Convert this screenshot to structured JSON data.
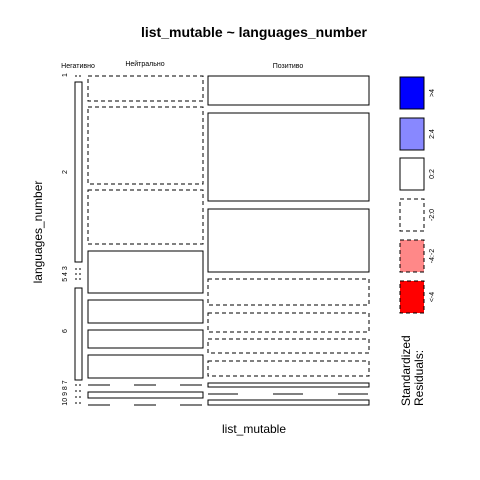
{
  "chart_data": {
    "type": "mosaic",
    "title": "list_mutable ~ languages_number",
    "xlabel": "list_mutable",
    "ylabel": "languages_number",
    "columns": [
      "Негативно",
      "Нейтрально",
      "Позитиво"
    ],
    "column_proportions": [
      0.035,
      0.385,
      0.58
    ],
    "rows": [
      "1",
      "2",
      "3",
      "4",
      "5",
      "6",
      "7",
      "8",
      "9",
      "10"
    ],
    "row_labels_shown": [
      "1",
      "2",
      "5 4 3",
      "6",
      "10 9 8 7"
    ],
    "cells": [
      {
        "column": "Негативно",
        "segments": [
          {
            "rows": "1",
            "share": 0.01,
            "residual_band": "<-4..0",
            "style": "line"
          },
          {
            "rows": "2",
            "share": 0.56,
            "residual_band": "0:2",
            "style": "solid"
          },
          {
            "rows": "3-5",
            "share": 0.03,
            "residual_band": "-2:0",
            "style": "dashed"
          },
          {
            "rows": "6",
            "share": 0.31,
            "residual_band": "0:2",
            "style": "solid"
          },
          {
            "rows": "7-10",
            "share": 0.09,
            "residual_band": "-2:0",
            "style": "dashed"
          }
        ]
      },
      {
        "column": "Нейтрально",
        "segments": [
          {
            "rows": "1",
            "share": 0.1,
            "residual_band": "-2:0",
            "style": "dashed"
          },
          {
            "rows": "2",
            "share": 0.26,
            "residual_band": "-2:0",
            "style": "dashed"
          },
          {
            "rows": "2",
            "share": 0.18,
            "residual_band": "-2:0",
            "style": "dashed"
          },
          {
            "rows": "3-5",
            "share": 0.15,
            "residual_band": "0:2",
            "style": "solid"
          },
          {
            "rows": "6",
            "share": 0.07,
            "residual_band": "0:2",
            "style": "solid"
          },
          {
            "rows": "6",
            "share": 0.07,
            "residual_band": "0:2",
            "style": "solid"
          },
          {
            "rows": "6",
            "share": 0.09,
            "residual_band": "0:2",
            "style": "solid"
          },
          {
            "rows": "7-10",
            "share": 0.08,
            "residual_band": "-2:0",
            "style": "dashed"
          }
        ]
      },
      {
        "column": "Позитиво",
        "segments": [
          {
            "rows": "1",
            "share": 0.1,
            "residual_band": "0:2",
            "style": "solid"
          },
          {
            "rows": "2",
            "share": 0.3,
            "residual_band": "0:2",
            "style": "solid"
          },
          {
            "rows": "2",
            "share": 0.21,
            "residual_band": "0:2",
            "style": "solid"
          },
          {
            "rows": "3-5",
            "share": 0.09,
            "residual_band": "-2:0",
            "style": "dashed"
          },
          {
            "rows": "6",
            "share": 0.06,
            "residual_band": "-2:0",
            "style": "dashed"
          },
          {
            "rows": "6",
            "share": 0.05,
            "residual_band": "-2:0",
            "style": "dashed"
          },
          {
            "rows": "6",
            "share": 0.05,
            "residual_band": "-2:0",
            "style": "dashed"
          },
          {
            "rows": "7-10",
            "share": 0.14,
            "residual_band": "-2:0",
            "style": "mixed"
          }
        ]
      }
    ],
    "legend": {
      "title": "Standardized\nResiduals:",
      "placement": "right",
      "items": [
        {
          "label": ">4",
          "color": "#0000FF",
          "border": "solid"
        },
        {
          "label": "2:4",
          "color": "#8888FF",
          "border": "solid"
        },
        {
          "label": "0:2",
          "color": "#FFFFFF",
          "border": "solid"
        },
        {
          "label": "-2:0",
          "color": "#FFFFFF",
          "border": "dashed"
        },
        {
          "label": "-4:-2",
          "color": "#FF8888",
          "border": "dashed"
        },
        {
          "label": "<-4",
          "color": "#FF0000",
          "border": "dashed"
        }
      ]
    }
  }
}
